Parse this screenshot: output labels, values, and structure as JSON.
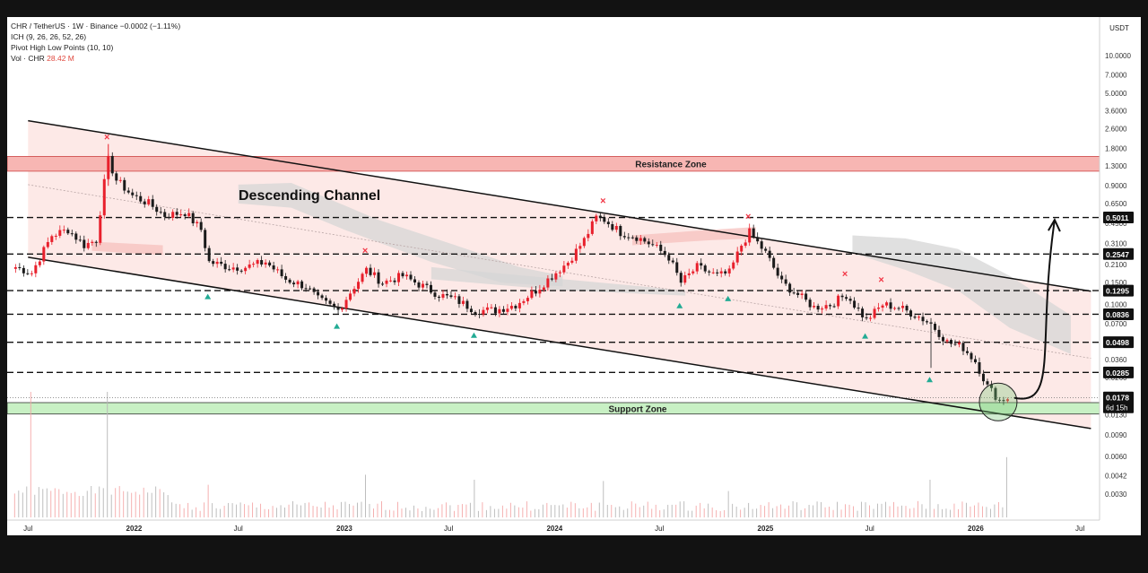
{
  "header": {
    "line1": "CHR / TetherUS · 1W · Binance",
    "line1_change": "−0.0002 (−1.11%)",
    "line2": "ICH (9, 26, 26, 52, 26)",
    "line3": "Pivot High Low Points (10, 10)",
    "line4_label": "Vol · CHR",
    "line4_value": "28.42 M"
  },
  "colors": {
    "bull": "#22ab94",
    "bear": "#f23645",
    "candle_up": "#e8202c",
    "candle_down": "#1a1a1a",
    "channel_fill": "#fde3e1",
    "resistance_fill": "#f7b6b3",
    "support_fill": "#c8f0c4",
    "cloud_grey": "#d5d5d5",
    "cloud_red": "#f5c0bd"
  },
  "chart_data": {
    "type": "candlestick",
    "symbol": "CHR / TetherUS",
    "interval": "1W",
    "exchange": "Binance",
    "y_scale": "log",
    "y_unit": "USDT",
    "ylim": [
      0.0025,
      13.5
    ],
    "y_ticks": [
      "10.0000",
      "7.0000",
      "5.0000",
      "3.6000",
      "2.6000",
      "1.8000",
      "1.3000",
      "0.9000",
      "0.6500",
      "0.4500",
      "0.3100",
      "0.2100",
      "0.1500",
      "0.1000",
      "0.0700",
      "0.0500",
      "0.0360",
      "0.0260",
      "0.0130",
      "0.0090",
      "0.0060",
      "0.0042",
      "0.0030"
    ],
    "x_ticks": [
      "Jul",
      "2022",
      "Jul",
      "2023",
      "Jul",
      "2024",
      "Jul",
      "2025",
      "Jul",
      "2026",
      "Jul"
    ],
    "annotations": {
      "channel_label": "Descending Channel",
      "resistance_label": "Resistance Zone",
      "support_label": "Support Zone",
      "resistance_zone": [
        1.18,
        1.55
      ],
      "support_zone": [
        0.0132,
        0.0163
      ]
    },
    "price_levels": [
      {
        "label": "0.5011",
        "value": 0.5011
      },
      {
        "label": "0.2547",
        "value": 0.2547
      },
      {
        "label": "0.1295",
        "value": 0.1295
      },
      {
        "label": "0.0836",
        "value": 0.0836
      },
      {
        "label": "0.0498",
        "value": 0.0498
      },
      {
        "label": "0.0285",
        "value": 0.0285
      }
    ],
    "current_price": {
      "label": "0.0178",
      "countdown": "6d 15h",
      "value": 0.0178
    },
    "pivots_high": [
      {
        "date": "2021-11-15",
        "price": 1.95
      },
      {
        "date": "2023-02-06",
        "price": 0.24
      },
      {
        "date": "2024-03-25",
        "price": 0.6
      },
      {
        "date": "2024-12-02",
        "price": 0.45
      },
      {
        "date": "2025-05-19",
        "price": 0.155
      },
      {
        "date": "2025-07-21",
        "price": 0.14
      }
    ],
    "pivots_low": [
      {
        "date": "2022-05-09",
        "price": 0.135
      },
      {
        "date": "2022-12-19",
        "price": 0.078
      },
      {
        "date": "2023-08-14",
        "price": 0.066
      },
      {
        "date": "2024-08-05",
        "price": 0.114
      },
      {
        "date": "2024-10-28",
        "price": 0.13
      },
      {
        "date": "2025-06-23",
        "price": 0.065
      },
      {
        "date": "2025-10-13",
        "price": 0.029
      }
    ],
    "series": [
      {
        "name": "CHR",
        "points": [
          [
            "2021-06-07",
            0.2
          ],
          [
            "2021-07-05",
            0.18
          ],
          [
            "2021-08-09",
            0.36
          ],
          [
            "2021-09-06",
            0.4
          ],
          [
            "2021-10-04",
            0.3
          ],
          [
            "2021-10-25",
            0.33
          ],
          [
            "2021-11-08",
            0.95
          ],
          [
            "2021-11-15",
            1.45
          ],
          [
            "2021-11-29",
            1.0
          ],
          [
            "2021-12-27",
            0.75
          ],
          [
            "2022-01-24",
            0.65
          ],
          [
            "2022-02-21",
            0.52
          ],
          [
            "2022-03-28",
            0.55
          ],
          [
            "2022-04-25",
            0.4
          ],
          [
            "2022-05-09",
            0.22
          ],
          [
            "2022-06-13",
            0.2
          ],
          [
            "2022-07-11",
            0.2
          ],
          [
            "2022-08-15",
            0.22
          ],
          [
            "2022-09-19",
            0.16
          ],
          [
            "2022-10-24",
            0.14
          ],
          [
            "2022-11-14",
            0.11
          ],
          [
            "2022-12-19",
            0.09
          ],
          [
            "2023-01-16",
            0.14
          ],
          [
            "2023-02-06",
            0.19
          ],
          [
            "2023-03-06",
            0.15
          ],
          [
            "2023-04-10",
            0.17
          ],
          [
            "2023-05-15",
            0.14
          ],
          [
            "2023-06-12",
            0.12
          ],
          [
            "2023-07-10",
            0.11
          ],
          [
            "2023-08-14",
            0.09
          ],
          [
            "2023-09-18",
            0.09
          ],
          [
            "2023-10-23",
            0.1
          ],
          [
            "2023-11-27",
            0.13
          ],
          [
            "2023-12-25",
            0.17
          ],
          [
            "2024-01-22",
            0.22
          ],
          [
            "2024-02-19",
            0.33
          ],
          [
            "2024-03-11",
            0.5
          ],
          [
            "2024-03-25",
            0.48
          ],
          [
            "2024-04-22",
            0.38
          ],
          [
            "2024-05-20",
            0.35
          ],
          [
            "2024-06-17",
            0.3
          ],
          [
            "2024-07-15",
            0.24
          ],
          [
            "2024-08-05",
            0.15
          ],
          [
            "2024-09-02",
            0.2
          ],
          [
            "2024-10-07",
            0.17
          ],
          [
            "2024-10-28",
            0.18
          ],
          [
            "2024-11-18",
            0.3
          ],
          [
            "2024-12-02",
            0.38
          ],
          [
            "2024-12-30",
            0.26
          ],
          [
            "2025-01-27",
            0.15
          ],
          [
            "2025-02-24",
            0.12
          ],
          [
            "2025-03-24",
            0.095
          ],
          [
            "2025-04-21",
            0.1
          ],
          [
            "2025-05-19",
            0.12
          ],
          [
            "2025-06-23",
            0.075
          ],
          [
            "2025-07-21",
            0.1
          ],
          [
            "2025-08-18",
            0.095
          ],
          [
            "2025-09-22",
            0.08
          ],
          [
            "2025-10-13",
            0.07
          ],
          [
            "2025-11-10",
            0.05
          ],
          [
            "2025-12-08",
            0.045
          ],
          [
            "2025-12-29",
            0.035
          ],
          [
            "2026-01-19",
            0.022
          ],
          [
            "2026-02-09",
            0.017
          ],
          [
            "2026-02-23",
            0.0178
          ]
        ]
      },
      {
        "name": "Vol · CHR",
        "values": [
          [
            "2021-07-05",
            1.0
          ],
          [
            "2021-11-15",
            1.0
          ],
          [
            "2022-05-09",
            0.26
          ],
          [
            "2023-02-06",
            0.34
          ],
          [
            "2023-08-14",
            0.3
          ],
          [
            "2024-03-25",
            0.29
          ],
          [
            "2024-10-28",
            0.21
          ],
          [
            "2025-10-13",
            0.3
          ],
          [
            "2026-02-23",
            0.48
          ]
        ]
      }
    ],
    "projection": "curved arrow from ~0.0178 (Mar 2026) rising to ~0.50 (May 2026)"
  }
}
